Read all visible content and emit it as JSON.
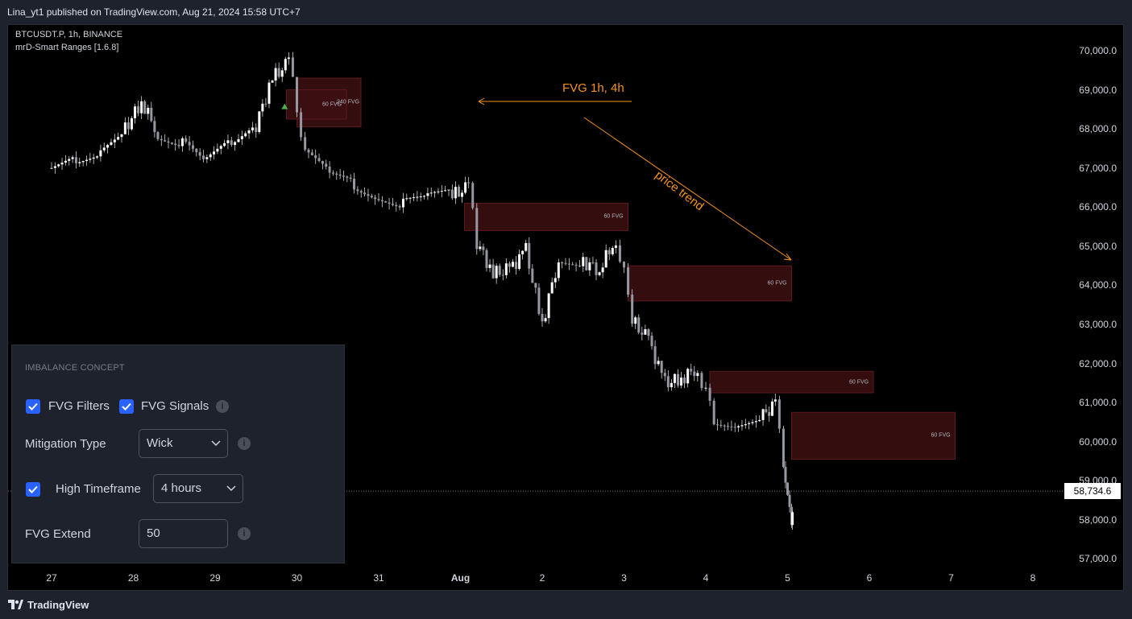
{
  "publish_line": "Lina_yt1 published on TradingView.com, Aug 21, 2024 15:58 UTC+7",
  "legend": {
    "symbol_line": "BTCUSDT.P, 1h, BINANCE",
    "indicator_line": "mrD-Smart Ranges [1.6.8]"
  },
  "price_axis": [
    "70,000.0",
    "69,000.0",
    "68,000.0",
    "67,000.0",
    "66,000.0",
    "65,000.0",
    "64,000.0",
    "63,000.0",
    "62,000.0",
    "61,000.0",
    "60,000.0",
    "59,000.0",
    "58,000.0",
    "57,000.0"
  ],
  "last_price": "58,734.6",
  "date_axis": [
    "27",
    "28",
    "29",
    "30",
    "31",
    "Aug",
    "2",
    "3",
    "4",
    "5",
    "6",
    "7",
    "8"
  ],
  "fvg_zones": [
    {
      "label": "240 FVG",
      "top": 69300,
      "bottom": 68050,
      "start": "Jul 30",
      "end": "Jul 31"
    },
    {
      "label": "60 FVG",
      "top": 69000,
      "bottom": 68250,
      "start": "Jul 30",
      "end": "Jul 31"
    },
    {
      "label": "60 FVG",
      "top": 66100,
      "bottom": 65400,
      "start": "Aug 1",
      "end": "Aug 3"
    },
    {
      "label": "60 FVG",
      "top": 64500,
      "bottom": 63600,
      "start": "Aug 3",
      "end": "Aug 5"
    },
    {
      "label": "60 FVG",
      "top": 61800,
      "bottom": 61250,
      "start": "Aug 4",
      "end": "Aug 6"
    },
    {
      "label": "60 FVG",
      "top": 60750,
      "bottom": 59550,
      "start": "Aug 5",
      "end": "Aug 7"
    }
  ],
  "annotations": {
    "fvg_note": "FVG 1h, 4h",
    "trend_note": "price trend"
  },
  "colors": {
    "background": "#000000",
    "fvg_fill": "#3d0f12",
    "annotation": "#f7931a",
    "candle": "#d1d4dc",
    "checkbox": "#2962ff"
  },
  "settings_panel": {
    "title": "IMBALANCE CONCEPT",
    "fvg_filters": {
      "label": "FVG Filters",
      "checked": true
    },
    "fvg_signals": {
      "label": "FVG Signals",
      "checked": true
    },
    "mitigation_type": {
      "label": "Mitigation Type",
      "value": "Wick"
    },
    "high_timeframe": {
      "label": "High Timeframe",
      "checked": true,
      "value": "4 hours"
    },
    "fvg_extend": {
      "label": "FVG Extend",
      "value": "50"
    }
  },
  "footer": {
    "brand": "TradingView"
  }
}
